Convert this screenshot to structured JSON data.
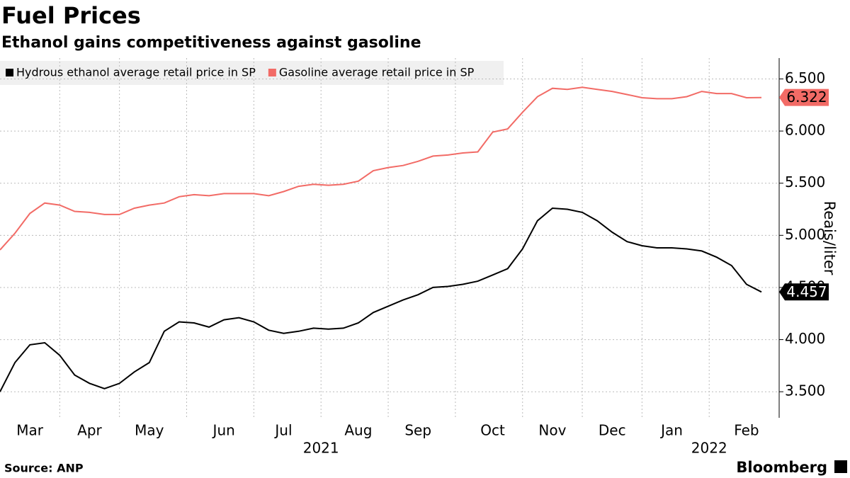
{
  "chart_data": {
    "type": "line",
    "title": "Fuel Prices",
    "subtitle": "Ethanol gains competitiveness against gasoline",
    "y_label": "Reais/liter",
    "source": "Source: ANP",
    "brand": "Bloomberg",
    "categories": [
      null,
      null,
      "Mar",
      null,
      null,
      null,
      "Apr",
      null,
      null,
      null,
      "May",
      null,
      null,
      null,
      null,
      "Jun",
      null,
      null,
      null,
      "Jul",
      null,
      null,
      null,
      null,
      "Aug",
      null,
      null,
      null,
      "Sep",
      null,
      null,
      null,
      null,
      "Oct",
      null,
      null,
      null,
      "Nov",
      null,
      null,
      null,
      "Dec",
      null,
      null,
      null,
      "Jan",
      null,
      null,
      null,
      null,
      "Feb",
      null
    ],
    "x_group_labels": [
      "2021",
      "2022"
    ],
    "series": [
      {
        "name": "Hydrous ethanol average retail price in SP",
        "color": "#000000",
        "values": [
          3.5,
          3.78,
          3.95,
          3.97,
          3.85,
          3.66,
          3.58,
          3.53,
          3.58,
          3.69,
          3.78,
          4.08,
          4.17,
          4.16,
          4.12,
          4.19,
          4.21,
          4.17,
          4.09,
          4.06,
          4.08,
          4.11,
          4.1,
          4.11,
          4.16,
          4.26,
          4.32,
          4.38,
          4.43,
          4.5,
          4.51,
          4.53,
          4.56,
          4.62,
          4.68,
          4.87,
          5.14,
          5.26,
          5.25,
          5.22,
          5.14,
          5.03,
          4.94,
          4.9,
          4.88,
          4.88,
          4.87,
          4.85,
          4.79,
          4.71,
          4.53,
          4.457
        ]
      },
      {
        "name": "Gasoline average retail price in SP",
        "color": "#f26b66",
        "values": [
          4.86,
          5.02,
          5.21,
          5.31,
          5.29,
          5.23,
          5.22,
          5.2,
          5.2,
          5.26,
          5.29,
          5.31,
          5.37,
          5.39,
          5.38,
          5.4,
          5.4,
          5.4,
          5.38,
          5.42,
          5.47,
          5.49,
          5.48,
          5.49,
          5.52,
          5.62,
          5.65,
          5.67,
          5.71,
          5.76,
          5.77,
          5.79,
          5.8,
          5.99,
          6.02,
          6.18,
          6.33,
          6.41,
          6.4,
          6.42,
          6.4,
          6.38,
          6.35,
          6.32,
          6.31,
          6.31,
          6.33,
          6.38,
          6.36,
          6.36,
          6.32,
          6.322
        ]
      }
    ],
    "ylim": [
      3.25,
      6.7
    ],
    "yticks": [
      {
        "value": 3.5,
        "label": "3.500"
      },
      {
        "value": 4.0,
        "label": "4.000"
      },
      {
        "value": 4.5,
        "label": "4.500"
      },
      {
        "value": 5.0,
        "label": "5.000"
      },
      {
        "value": 5.5,
        "label": "5.500"
      },
      {
        "value": 6.0,
        "label": "6.000"
      },
      {
        "value": 6.5,
        "label": "6.500"
      }
    ],
    "grid": true,
    "legend": "top-left"
  }
}
